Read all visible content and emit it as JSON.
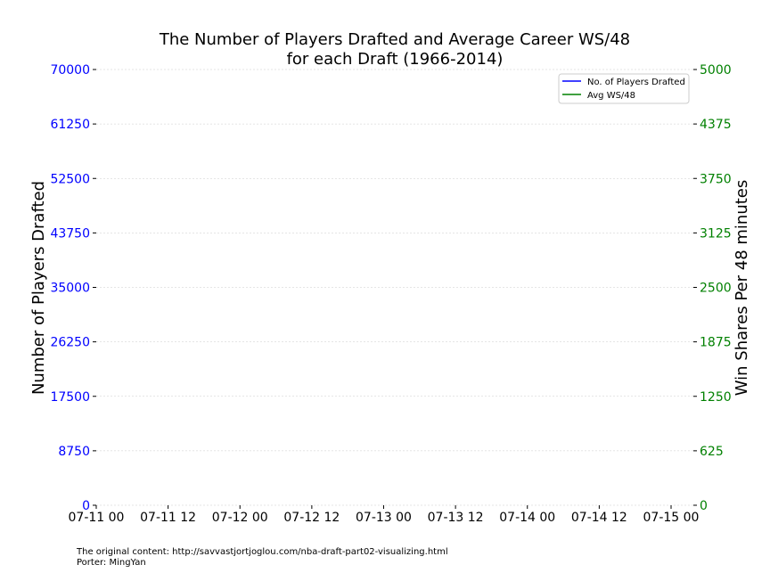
{
  "chart_data": {
    "type": "line",
    "title_line1": "The Number of Players Drafted and Average Career WS/48",
    "title_line2": "for each Draft (1966-2014)",
    "xlabel": "",
    "ylabel_left": "Number of Players Drafted",
    "ylabel_right": "Win Shares Per 48 minutes",
    "x_ticks": [
      "07-11 00",
      "07-11 12",
      "07-12 00",
      "07-12 12",
      "07-13 00",
      "07-13 12",
      "07-14 00",
      "07-14 12",
      "07-15 00"
    ],
    "y_left_ticks": [
      "0",
      "8750",
      "17500",
      "26250",
      "35000",
      "43750",
      "52500",
      "61250",
      "70000"
    ],
    "y_right_ticks": [
      "0",
      "625",
      "1250",
      "1875",
      "2500",
      "3125",
      "3750",
      "4375",
      "5000"
    ],
    "ylim_left": [
      0,
      70000
    ],
    "ylim_right": [
      0,
      5000
    ],
    "grid": true,
    "legend_position": "top-right",
    "series": [
      {
        "name": "No. of Players Drafted",
        "axis": "left",
        "color": "#0000ff",
        "values": []
      },
      {
        "name": "Avg WS/48",
        "axis": "right",
        "color": "#008000",
        "values": []
      }
    ],
    "colors": {
      "left_axis": "#0000ff",
      "right_axis": "#008000",
      "grid": "#cccccc"
    }
  },
  "footer": {
    "line1": "The original content: http://savvastjortjoglou.com/nba-draft-part02-visualizing.html",
    "line2": "Porter: MingYan"
  }
}
